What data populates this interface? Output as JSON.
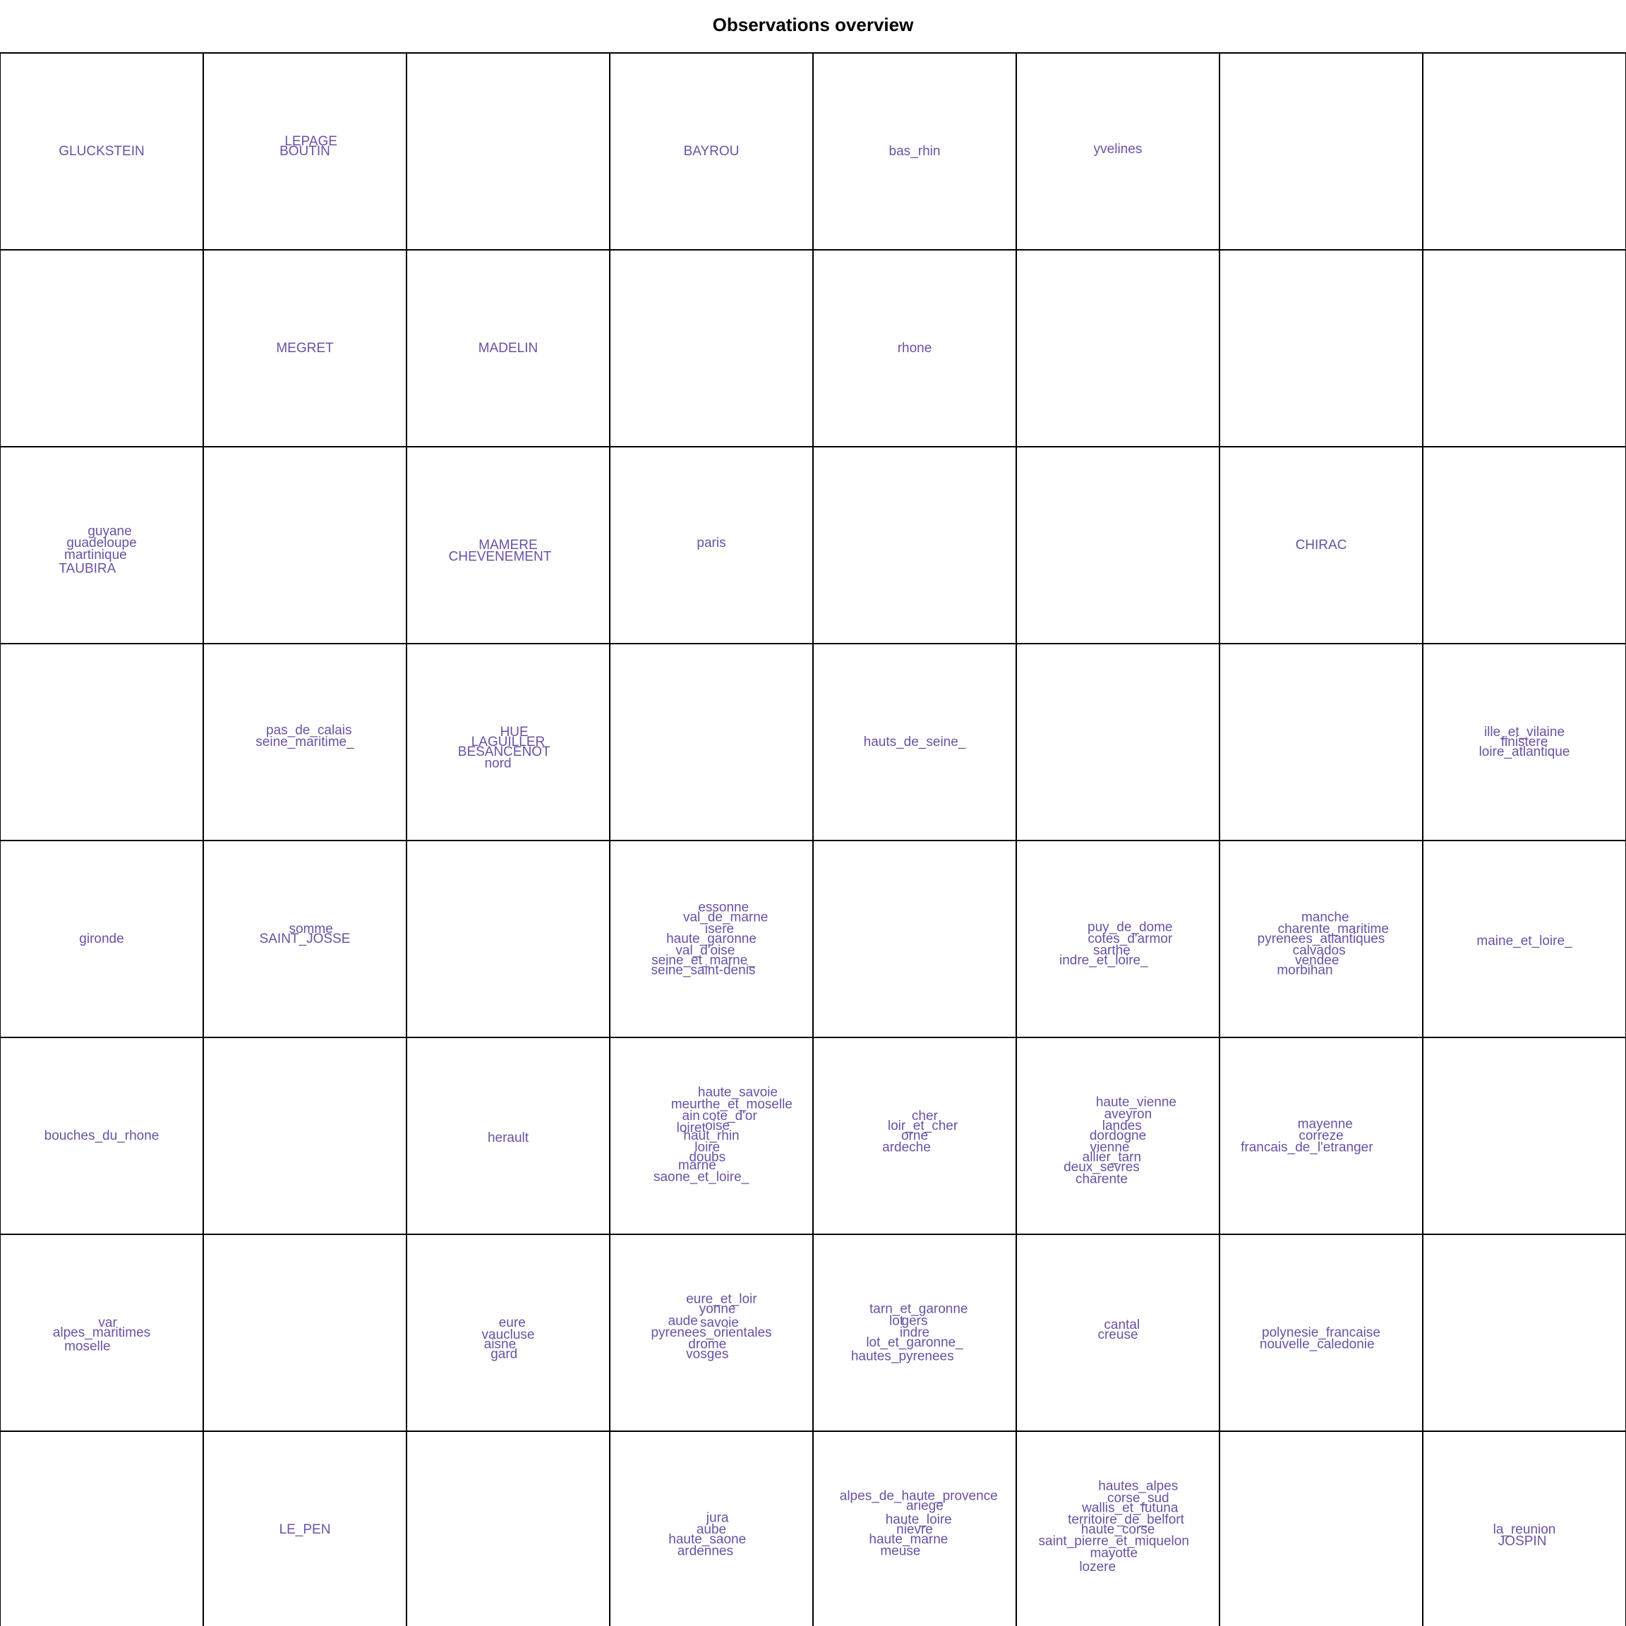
{
  "title": "Observations overview",
  "colors": {
    "label": "#6a51a3",
    "grid": "#000000",
    "title": "#000000"
  },
  "chart_data": {
    "type": "som-map",
    "grid_cols": 8,
    "grid_rows": 8,
    "cells": [
      {
        "row": 1,
        "col": 1,
        "labels": [
          {
            "text": "GLUCKSTEIN",
            "dx": 0,
            "dy": 0
          }
        ]
      },
      {
        "row": 1,
        "col": 2,
        "labels": [
          {
            "text": "LEPAGE",
            "dx": 0.03,
            "dy": 0.05
          },
          {
            "text": "BOUTIN",
            "dx": 0,
            "dy": 0
          }
        ]
      },
      {
        "row": 1,
        "col": 4,
        "labels": [
          {
            "text": "BAYROU",
            "dx": 0,
            "dy": 0
          }
        ]
      },
      {
        "row": 1,
        "col": 5,
        "labels": [
          {
            "text": "bas_rhin",
            "dx": 0,
            "dy": 0
          }
        ]
      },
      {
        "row": 1,
        "col": 6,
        "labels": [
          {
            "text": "yvelines",
            "dx": 0,
            "dy": 0.01
          }
        ]
      },
      {
        "row": 2,
        "col": 2,
        "labels": [
          {
            "text": "MEGRET",
            "dx": 0,
            "dy": 0
          }
        ]
      },
      {
        "row": 2,
        "col": 3,
        "labels": [
          {
            "text": "MADELIN",
            "dx": 0,
            "dy": 0
          }
        ]
      },
      {
        "row": 2,
        "col": 5,
        "labels": [
          {
            "text": "rhone",
            "dx": 0,
            "dy": 0
          }
        ]
      },
      {
        "row": 3,
        "col": 1,
        "labels": [
          {
            "text": "guyane",
            "dx": 0.04,
            "dy": 0.07
          },
          {
            "text": "guadeloupe",
            "dx": 0,
            "dy": 0.01
          },
          {
            "text": "martinique",
            "dx": -0.03,
            "dy": -0.05
          },
          {
            "text": "TAUBIRA",
            "dx": -0.07,
            "dy": -0.12
          }
        ]
      },
      {
        "row": 3,
        "col": 3,
        "labels": [
          {
            "text": "MAMERE",
            "dx": 0,
            "dy": 0
          },
          {
            "text": "CHEVENEMENT",
            "dx": -0.04,
            "dy": -0.06
          }
        ]
      },
      {
        "row": 3,
        "col": 4,
        "labels": [
          {
            "text": "paris",
            "dx": 0,
            "dy": 0.01
          }
        ]
      },
      {
        "row": 3,
        "col": 7,
        "labels": [
          {
            "text": "CHIRAC",
            "dx": 0,
            "dy": 0
          }
        ]
      },
      {
        "row": 4,
        "col": 2,
        "labels": [
          {
            "text": "pas_de_calais",
            "dx": 0.02,
            "dy": 0.06
          },
          {
            "text": "seine_maritime_",
            "dx": 0,
            "dy": 0
          }
        ]
      },
      {
        "row": 4,
        "col": 3,
        "labels": [
          {
            "text": "HUE",
            "dx": 0.03,
            "dy": 0.05
          },
          {
            "text": "LAGUILLER",
            "dx": 0,
            "dy": 0
          },
          {
            "text": "BESANCENOT",
            "dx": -0.02,
            "dy": -0.05
          },
          {
            "text": "nord",
            "dx": -0.05,
            "dy": -0.11
          }
        ]
      },
      {
        "row": 4,
        "col": 5,
        "labels": [
          {
            "text": "hauts_de_seine_",
            "dx": 0,
            "dy": 0
          }
        ]
      },
      {
        "row": 4,
        "col": 8,
        "labels": [
          {
            "text": "ille_et_vilaine",
            "dx": 0,
            "dy": 0.05
          },
          {
            "text": "finistere",
            "dx": 0,
            "dy": 0
          },
          {
            "text": "loire_atlantique",
            "dx": 0,
            "dy": -0.05
          }
        ]
      },
      {
        "row": 5,
        "col": 1,
        "labels": [
          {
            "text": "gironde",
            "dx": 0,
            "dy": 0
          }
        ]
      },
      {
        "row": 5,
        "col": 2,
        "labels": [
          {
            "text": "somme",
            "dx": 0.03,
            "dy": 0.05
          },
          {
            "text": "SAINT_JOSSE",
            "dx": 0,
            "dy": 0
          }
        ]
      },
      {
        "row": 5,
        "col": 4,
        "labels": [
          {
            "text": "essonne",
            "dx": 0.06,
            "dy": 0.16
          },
          {
            "text": "val_de_marne",
            "dx": 0.07,
            "dy": 0.11
          },
          {
            "text": "isere",
            "dx": 0.04,
            "dy": 0.05
          },
          {
            "text": "haute_garonne",
            "dx": 0,
            "dy": 0
          },
          {
            "text": "val_d'oise",
            "dx": -0.03,
            "dy": -0.06
          },
          {
            "text": "seine_et_marne_",
            "dx": -0.04,
            "dy": -0.11
          },
          {
            "text": "seine_saint-denis",
            "dx": -0.04,
            "dy": -0.16
          }
        ]
      },
      {
        "row": 5,
        "col": 6,
        "labels": [
          {
            "text": "puy_de_dome",
            "dx": 0.06,
            "dy": 0.06
          },
          {
            "text": "cotes_d'armor",
            "dx": 0.06,
            "dy": 0
          },
          {
            "text": "sarthe",
            "dx": -0.03,
            "dy": -0.06
          },
          {
            "text": "indre_et_loire_",
            "dx": -0.07,
            "dy": -0.11
          }
        ]
      },
      {
        "row": 5,
        "col": 7,
        "labels": [
          {
            "text": "manche",
            "dx": 0.02,
            "dy": 0.11
          },
          {
            "text": "charente_maritime",
            "dx": 0.06,
            "dy": 0.05
          },
          {
            "text": "pyrenees_atlantiques",
            "dx": 0,
            "dy": 0
          },
          {
            "text": "calvados",
            "dx": -0.01,
            "dy": -0.06
          },
          {
            "text": "vendee",
            "dx": -0.02,
            "dy": -0.11
          },
          {
            "text": "morbihan",
            "dx": -0.08,
            "dy": -0.16
          }
        ]
      },
      {
        "row": 5,
        "col": 8,
        "labels": [
          {
            "text": "maine_et_loire_",
            "dx": 0,
            "dy": -0.01
          }
        ]
      },
      {
        "row": 6,
        "col": 1,
        "labels": [
          {
            "text": "bouches_du_rhone",
            "dx": 0,
            "dy": 0
          }
        ]
      },
      {
        "row": 6,
        "col": 3,
        "labels": [
          {
            "text": "herault",
            "dx": 0,
            "dy": -0.01
          }
        ]
      },
      {
        "row": 6,
        "col": 4,
        "labels": [
          {
            "text": "haute_savoie",
            "dx": 0.13,
            "dy": 0.22
          },
          {
            "text": "meurthe_et_moselle",
            "dx": 0.1,
            "dy": 0.16
          },
          {
            "text": "ain",
            "dx": -0.1,
            "dy": 0.1
          },
          {
            "text": "cote_d'or",
            "dx": 0.09,
            "dy": 0.1
          },
          {
            "text": "loiret",
            "dx": -0.1,
            "dy": 0.04
          },
          {
            "text": "oise",
            "dx": 0.03,
            "dy": 0.05
          },
          {
            "text": "haut_rhin",
            "dx": 0,
            "dy": 0
          },
          {
            "text": "loire",
            "dx": -0.02,
            "dy": -0.06
          },
          {
            "text": "doubs",
            "dx": -0.02,
            "dy": -0.11
          },
          {
            "text": "marne",
            "dx": -0.07,
            "dy": -0.15
          },
          {
            "text": "saone_et_loire_",
            "dx": -0.05,
            "dy": -0.21
          }
        ]
      },
      {
        "row": 6,
        "col": 5,
        "labels": [
          {
            "text": "cher",
            "dx": 0.05,
            "dy": 0.1
          },
          {
            "text": "loir_et_cher",
            "dx": 0.04,
            "dy": 0.05
          },
          {
            "text": "orne",
            "dx": 0,
            "dy": 0
          },
          {
            "text": "ardeche",
            "dx": -0.04,
            "dy": -0.06
          }
        ]
      },
      {
        "row": 6,
        "col": 6,
        "labels": [
          {
            "text": "haute_vienne",
            "dx": 0.09,
            "dy": 0.17
          },
          {
            "text": "aveyron",
            "dx": 0.05,
            "dy": 0.11
          },
          {
            "text": "landes",
            "dx": 0.02,
            "dy": 0.05
          },
          {
            "text": "dordogne",
            "dx": 0,
            "dy": 0
          },
          {
            "text": "vienne",
            "dx": -0.04,
            "dy": -0.06
          },
          {
            "text": "allier_tarn",
            "dx": -0.03,
            "dy": -0.11
          },
          {
            "text": "deux_sevres",
            "dx": -0.08,
            "dy": -0.16
          },
          {
            "text": "charente",
            "dx": -0.08,
            "dy": -0.22
          }
        ]
      },
      {
        "row": 6,
        "col": 7,
        "labels": [
          {
            "text": "mayenne",
            "dx": 0.02,
            "dy": 0.06
          },
          {
            "text": "correze",
            "dx": 0,
            "dy": 0
          },
          {
            "text": "francais_de_l'etranger",
            "dx": -0.07,
            "dy": -0.06
          }
        ]
      },
      {
        "row": 7,
        "col": 1,
        "labels": [
          {
            "text": "var",
            "dx": 0.03,
            "dy": 0.05
          },
          {
            "text": "alpes_maritimes",
            "dx": 0,
            "dy": 0
          },
          {
            "text": "moselle",
            "dx": -0.07,
            "dy": -0.07
          }
        ]
      },
      {
        "row": 7,
        "col": 3,
        "labels": [
          {
            "text": "eure",
            "dx": 0.02,
            "dy": 0.05
          },
          {
            "text": "vaucluse",
            "dx": 0,
            "dy": -0.01
          },
          {
            "text": "aisne",
            "dx": -0.04,
            "dy": -0.06
          },
          {
            "text": "gard",
            "dx": -0.02,
            "dy": -0.11
          }
        ]
      },
      {
        "row": 7,
        "col": 4,
        "labels": [
          {
            "text": "eure_et_loir",
            "dx": 0.05,
            "dy": 0.17
          },
          {
            "text": "yonne",
            "dx": 0.03,
            "dy": 0.12
          },
          {
            "text": "aude",
            "dx": -0.14,
            "dy": 0.06
          },
          {
            "text": "savoie",
            "dx": 0.04,
            "dy": 0.05
          },
          {
            "text": "pyrenees_orientales",
            "dx": 0,
            "dy": 0
          },
          {
            "text": "drome",
            "dx": -0.02,
            "dy": -0.06
          },
          {
            "text": "vosges",
            "dx": -0.02,
            "dy": -0.11
          }
        ]
      },
      {
        "row": 7,
        "col": 5,
        "labels": [
          {
            "text": "tarn_et_garonne",
            "dx": 0.02,
            "dy": 0.12
          },
          {
            "text": "lot",
            "dx": -0.09,
            "dy": 0.06
          },
          {
            "text": "gers",
            "dx": 0,
            "dy": 0.06
          },
          {
            "text": "indre",
            "dx": 0,
            "dy": 0
          },
          {
            "text": "lot_et_garonne_",
            "dx": 0,
            "dy": -0.05
          },
          {
            "text": "hautes_pyrenees",
            "dx": -0.06,
            "dy": -0.12
          }
        ]
      },
      {
        "row": 7,
        "col": 6,
        "labels": [
          {
            "text": "cantal",
            "dx": 0.02,
            "dy": 0.04
          },
          {
            "text": "creuse",
            "dx": 0,
            "dy": -0.01
          }
        ]
      },
      {
        "row": 7,
        "col": 7,
        "labels": [
          {
            "text": "polynesie_francaise",
            "dx": 0,
            "dy": 0
          },
          {
            "text": "nouvelle_caledonie",
            "dx": -0.02,
            "dy": -0.06
          }
        ]
      },
      {
        "row": 8,
        "col": 2,
        "labels": [
          {
            "text": "LE_PEN",
            "dx": 0,
            "dy": 0
          }
        ]
      },
      {
        "row": 8,
        "col": 4,
        "labels": [
          {
            "text": "jura",
            "dx": 0.03,
            "dy": 0.06
          },
          {
            "text": "aube",
            "dx": 0,
            "dy": 0
          },
          {
            "text": "haute_saone",
            "dx": -0.02,
            "dy": -0.05
          },
          {
            "text": "ardennes",
            "dx": -0.03,
            "dy": -0.11
          }
        ]
      },
      {
        "row": 8,
        "col": 5,
        "labels": [
          {
            "text": "alpes_de_haute_provence",
            "dx": 0.02,
            "dy": 0.17
          },
          {
            "text": "ariege",
            "dx": 0.05,
            "dy": 0.12
          },
          {
            "text": "haute_loire",
            "dx": 0.02,
            "dy": 0.05
          },
          {
            "text": "nievre",
            "dx": 0,
            "dy": 0
          },
          {
            "text": "haute_marne",
            "dx": -0.03,
            "dy": -0.05
          },
          {
            "text": "meuse",
            "dx": -0.07,
            "dy": -0.11
          }
        ]
      },
      {
        "row": 8,
        "col": 6,
        "labels": [
          {
            "text": "hautes_alpes",
            "dx": 0.1,
            "dy": 0.22
          },
          {
            "text": "corse_sud",
            "dx": 0.1,
            "dy": 0.16
          },
          {
            "text": "wallis_et_futuna",
            "dx": 0.06,
            "dy": 0.11
          },
          {
            "text": "territoire_de_belfort",
            "dx": 0.04,
            "dy": 0.05
          },
          {
            "text": "haute_corse",
            "dx": 0,
            "dy": 0
          },
          {
            "text": "saint_pierre_et_miquelon",
            "dx": -0.02,
            "dy": -0.06
          },
          {
            "text": "mayotte",
            "dx": -0.02,
            "dy": -0.12
          },
          {
            "text": "lozere",
            "dx": -0.1,
            "dy": -0.19
          }
        ]
      },
      {
        "row": 8,
        "col": 8,
        "labels": [
          {
            "text": "la_reunion",
            "dx": 0,
            "dy": 0
          },
          {
            "text": "JOSPIN",
            "dx": -0.01,
            "dy": -0.06
          }
        ]
      }
    ]
  }
}
